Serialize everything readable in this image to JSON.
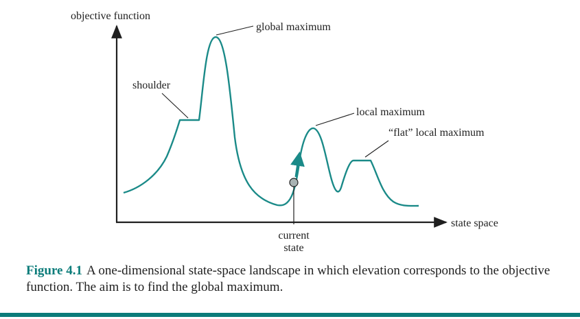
{
  "diagram": {
    "y_axis_label": "objective function",
    "x_axis_label": "state space",
    "annotations": {
      "global_maximum": "global maximum",
      "shoulder": "shoulder",
      "local_maximum": "local maximum",
      "flat_local_maximum": "“flat” local maximum",
      "current_state_line1": "current",
      "current_state_line2": "state"
    },
    "colors": {
      "curve": "#1a8a88",
      "axis": "#1f1f1f",
      "marker_fill": "#a9b3b3",
      "caption_label": "#0b7c7a",
      "rule": "#0b7c7a"
    }
  },
  "caption": {
    "label": "Figure 4.1",
    "text": "A one-dimensional state-space landscape in which elevation corresponds to the objective function. The aim is to find the global maximum."
  }
}
